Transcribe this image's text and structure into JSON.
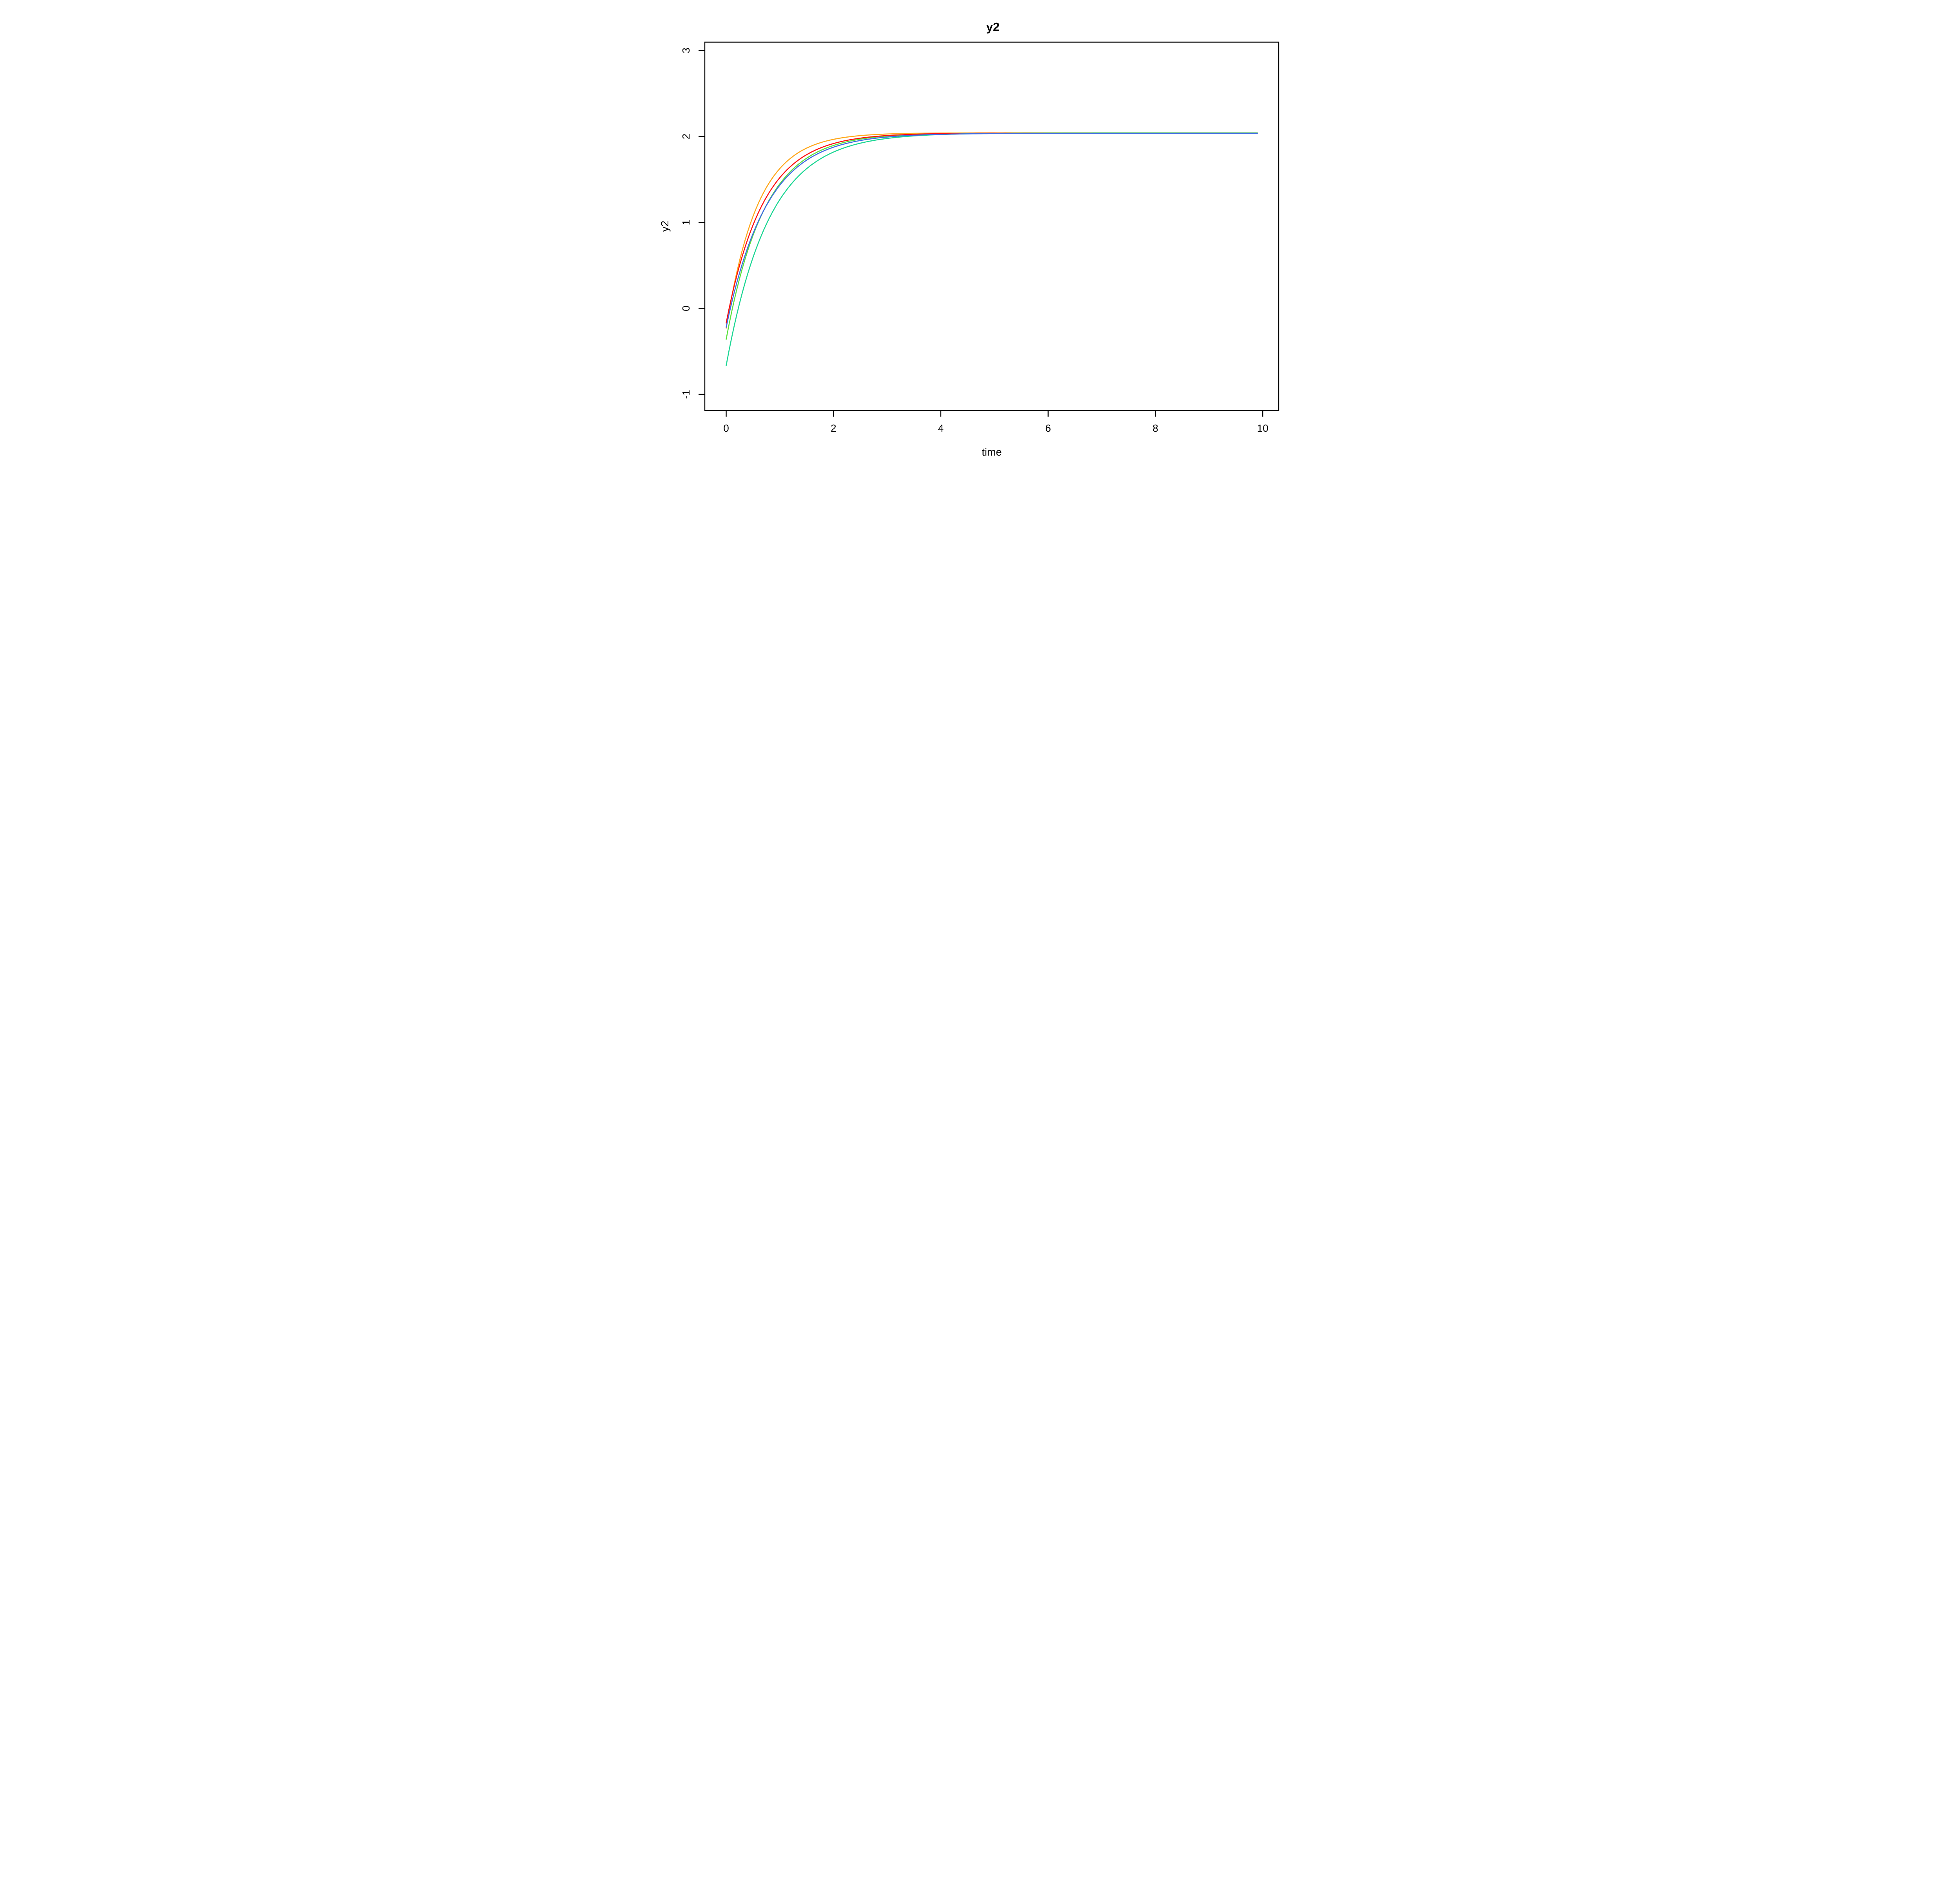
{
  "figure": {
    "title": "y2"
  },
  "chart_data": {
    "type": "line",
    "title": "y2",
    "xlabel": "time",
    "ylabel": "y2",
    "x_ticks": [
      0,
      2,
      4,
      6,
      8,
      10
    ],
    "x_tick_labels": [
      "0",
      "2",
      "4",
      "6",
      "8",
      "10"
    ],
    "y_ticks": [
      -1,
      0,
      1,
      2,
      3
    ],
    "y_tick_labels": [
      "-1",
      "0",
      "1",
      "2",
      "3"
    ],
    "xlim": [
      -0.42,
      10.3
    ],
    "ylim": [
      -1.19,
      3.1
    ],
    "grid": false,
    "legend_position": "none",
    "background": "#ffffff",
    "axis_color": "#000000",
    "model": "y(t) = A - (A - y0) * exp(-k * t)",
    "t_start": 0,
    "t_end": 9.9,
    "common_asymptote": 2.04,
    "series": [
      {
        "name": "green",
        "color": "#59E23C",
        "y0": -0.36,
        "k": 1.4,
        "asymptote": 2.041
      },
      {
        "name": "orange",
        "color": "#FFA81C",
        "y0": -0.23,
        "k": 1.7,
        "asymptote": 2.042
      },
      {
        "name": "red",
        "color": "#FF0E0E",
        "y0": -0.17,
        "k": 1.45,
        "asymptote": 2.039
      },
      {
        "name": "teal",
        "color": "#1BD693",
        "y0": -0.665,
        "k": 1.25,
        "asymptote": 2.0405
      },
      {
        "name": "blue",
        "color": "#3F6BE6",
        "y0": -0.22,
        "k": 1.32,
        "asymptote": 2.036
      }
    ]
  }
}
